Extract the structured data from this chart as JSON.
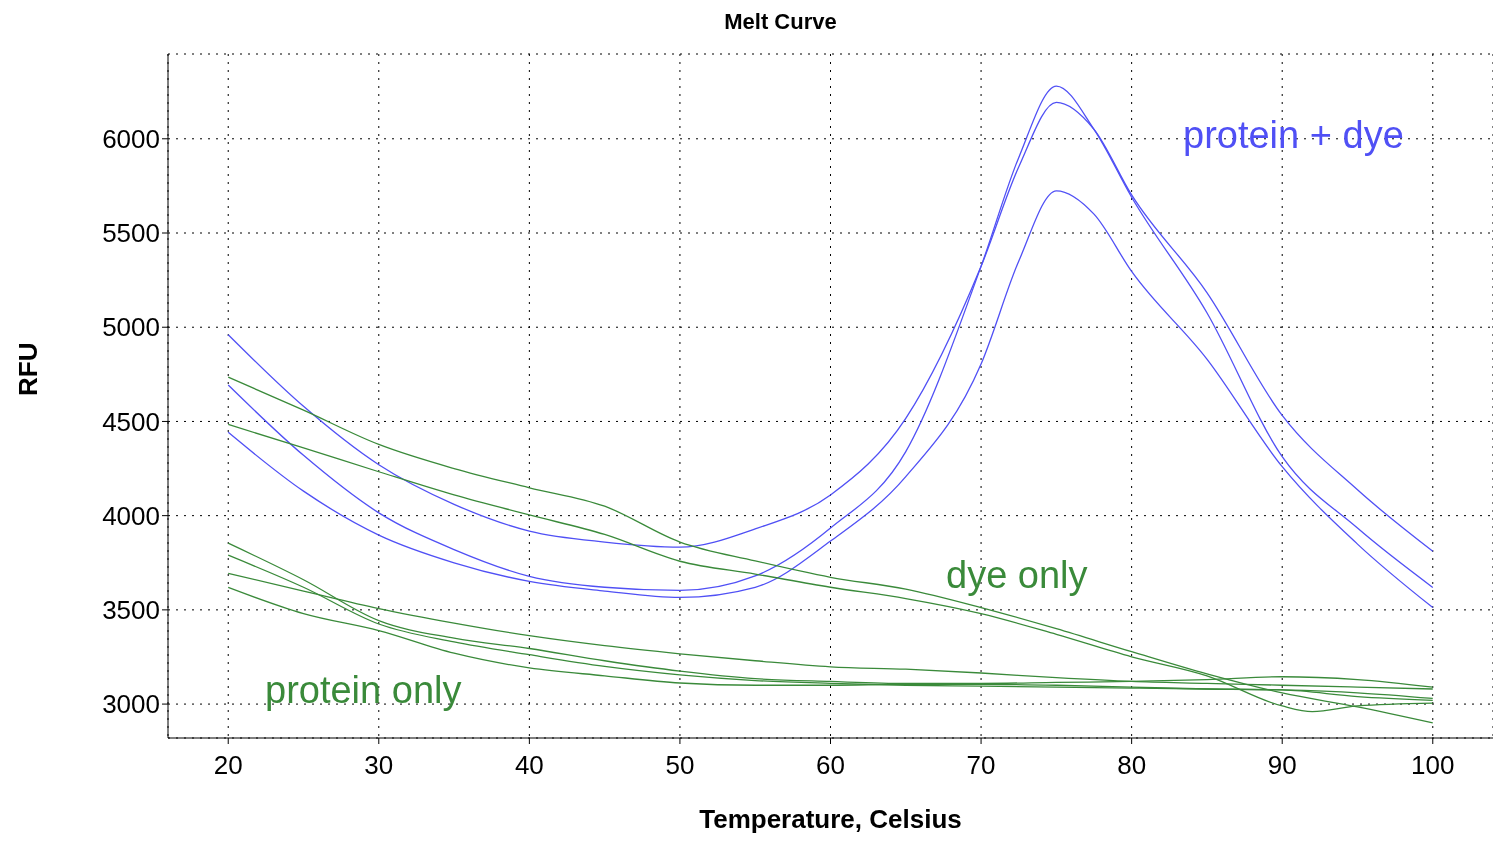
{
  "chart_data": {
    "type": "line",
    "title": "Melt Curve",
    "xlabel": "Temperature, Celsius",
    "ylabel": "RFU",
    "xlim": [
      16,
      104
    ],
    "xticks": [
      20,
      30,
      40,
      50,
      60,
      70,
      80,
      90,
      100
    ],
    "ylim": [
      2820,
      6450
    ],
    "yticks": [
      3000,
      3500,
      4000,
      4500,
      5000,
      5500,
      6000
    ],
    "grid": true,
    "annotations": [
      "protein + dye",
      "dye only",
      "protein only"
    ],
    "series": [
      {
        "color": "#5050f5",
        "x": [
          20,
          25,
          30,
          35,
          40,
          45,
          50,
          55,
          60,
          65,
          70,
          72.5,
          75,
          77.5,
          80,
          85,
          90,
          95,
          100
        ],
        "values": [
          4960,
          4580,
          4270,
          4060,
          3918,
          3860,
          3833,
          3930,
          4110,
          4516,
          5323,
          5850,
          6193,
          6050,
          5702,
          5184,
          4532,
          4137,
          3811
        ]
      },
      {
        "color": "#5050f5",
        "x": [
          20,
          25,
          30,
          35,
          40,
          45,
          50,
          55,
          60,
          65,
          70,
          72.5,
          75,
          77.5,
          80,
          85,
          90,
          95,
          100
        ],
        "values": [
          4693,
          4320,
          4015,
          3820,
          3678,
          3620,
          3603,
          3680,
          3934,
          4340,
          5323,
          5900,
          6280,
          6050,
          5690,
          5077,
          4313,
          3934,
          3619
        ]
      },
      {
        "color": "#5050f5",
        "x": [
          20,
          25,
          30,
          35,
          40,
          45,
          50,
          55,
          60,
          65,
          70,
          72.5,
          75,
          77.5,
          80,
          85,
          90,
          95,
          100
        ],
        "values": [
          4442,
          4130,
          3897,
          3750,
          3651,
          3600,
          3566,
          3620,
          3865,
          4207,
          4805,
          5350,
          5724,
          5600,
          5296,
          4831,
          4260,
          3849,
          3512
        ]
      },
      {
        "color": "#3a8a3a",
        "x": [
          20,
          25,
          30,
          35,
          40,
          45,
          50,
          55,
          60,
          65,
          70,
          75,
          80,
          85,
          90,
          95,
          100
        ],
        "values": [
          4735,
          4560,
          4378,
          4250,
          4148,
          4050,
          3860,
          3760,
          3673,
          3610,
          3512,
          3400,
          3278,
          3160,
          3059,
          2985,
          2900
        ]
      },
      {
        "color": "#3a8a3a",
        "x": [
          20,
          25,
          30,
          35,
          40,
          45,
          50,
          55,
          60,
          65,
          70,
          75,
          80,
          85,
          90,
          92,
          95,
          100
        ],
        "values": [
          4484,
          4360,
          4233,
          4110,
          4004,
          3900,
          3758,
          3690,
          3620,
          3560,
          3480,
          3370,
          3251,
          3150,
          2990,
          2960,
          2990,
          3005
        ]
      },
      {
        "color": "#3a8a3a",
        "x": [
          20,
          25,
          30,
          35,
          40,
          45,
          50,
          55,
          60,
          65,
          70,
          75,
          80,
          85,
          90,
          95,
          100
        ],
        "values": [
          3694,
          3600,
          3507,
          3430,
          3363,
          3310,
          3267,
          3230,
          3198,
          3185,
          3165,
          3140,
          3120,
          3110,
          3100,
          3090,
          3080
        ]
      },
      {
        "color": "#3a8a3a",
        "x": [
          20,
          25,
          30,
          35,
          40,
          45,
          50,
          55,
          60,
          65,
          70,
          75,
          80,
          85,
          90,
          95,
          100
        ],
        "values": [
          3854,
          3660,
          3443,
          3350,
          3295,
          3230,
          3175,
          3135,
          3120,
          3110,
          3110,
          3115,
          3120,
          3130,
          3145,
          3130,
          3090
        ]
      },
      {
        "color": "#3a8a3a",
        "x": [
          20,
          25,
          30,
          35,
          40,
          45,
          50,
          55,
          60,
          65,
          70,
          75,
          80,
          85,
          90,
          95,
          100
        ],
        "values": [
          3790,
          3620,
          3425,
          3330,
          3262,
          3200,
          3155,
          3125,
          3110,
          3100,
          3095,
          3090,
          3085,
          3080,
          3075,
          3060,
          3030
        ]
      },
      {
        "color": "#3a8a3a",
        "x": [
          20,
          25,
          30,
          35,
          40,
          45,
          50,
          55,
          60,
          65,
          70,
          75,
          80,
          85,
          90,
          95,
          100
        ],
        "values": [
          3619,
          3480,
          3390,
          3270,
          3192,
          3150,
          3112,
          3100,
          3100,
          3105,
          3105,
          3100,
          3090,
          3080,
          3075,
          3040,
          3020
        ]
      }
    ]
  }
}
